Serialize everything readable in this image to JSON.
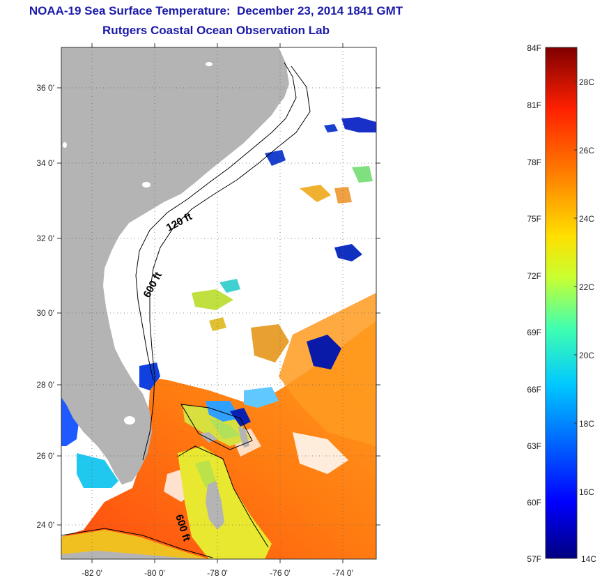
{
  "header": {
    "title": "NOAA-19 Sea Surface Temperature:  December 23, 2014 1841 GMT",
    "subtitle": "Rutgers Coastal Ocean Observation Lab"
  },
  "map": {
    "region": "US Southeast coast, Florida, Bahamas",
    "latitude_ticks": [
      "36 0'",
      "34 0'",
      "32 0'",
      "30 0'",
      "28 0'",
      "26 0'",
      "24 0'"
    ],
    "longitude_ticks": [
      "-82 0'",
      "-80 0'",
      "-78 0'",
      "-76 0'",
      "-74 0'"
    ],
    "lat_range": [
      23.0,
      37.2
    ],
    "lon_range": [
      -83.0,
      -73.0
    ],
    "contours": [
      {
        "label": "120 ft"
      },
      {
        "label": "600 ft"
      },
      {
        "label": "600 ft"
      }
    ],
    "land_color": "#b4b4b4",
    "cloud_color": "#ffffff",
    "grid": "dotted"
  },
  "colorbar": {
    "fahrenheit_labels": [
      "84F",
      "81F",
      "78F",
      "75F",
      "72F",
      "69F",
      "66F",
      "63F",
      "60F",
      "57F"
    ],
    "celsius_labels": [
      "28C",
      "26C",
      "24C",
      "22C",
      "20C",
      "18C",
      "16C",
      "14C"
    ],
    "range_f": [
      57,
      84
    ],
    "range_c": [
      14,
      29
    ],
    "colors": [
      "#00007f",
      "#0000ff",
      "#007fff",
      "#00ffff",
      "#7fff7f",
      "#ffff00",
      "#ff7f00",
      "#ff0000",
      "#7f0000"
    ]
  }
}
